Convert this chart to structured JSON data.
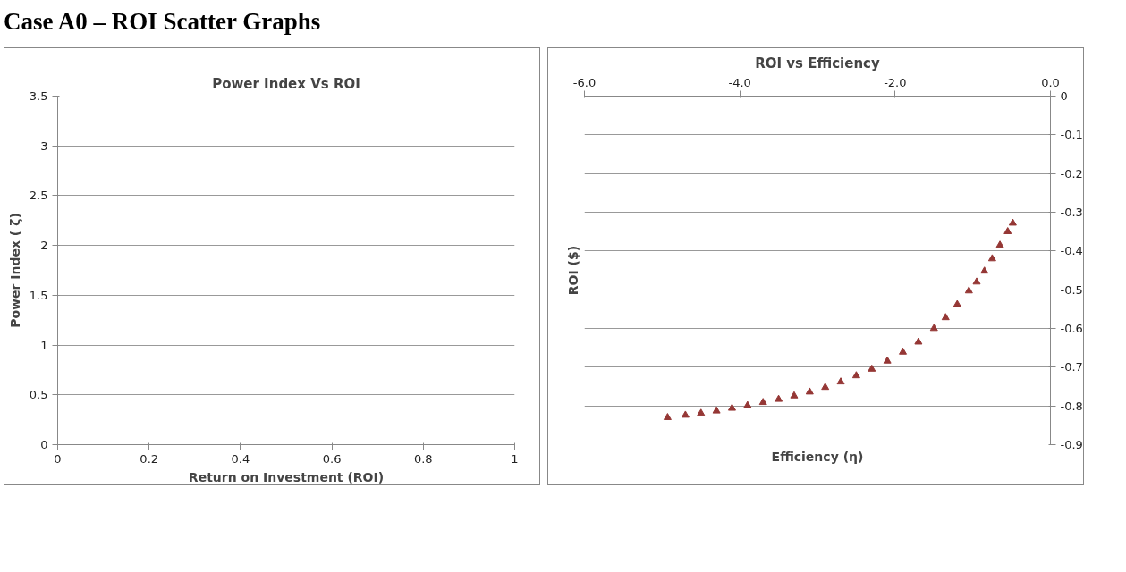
{
  "chart_data": [
    {
      "type": "scatter",
      "title": "Power Index Vs ROI",
      "xlabel": "Return on Investment (ROI)",
      "ylabel": "Power Index ( ζ)",
      "annotations": [
        "Case A0 – ROI Scatter Graphs"
      ],
      "xlim": [
        0,
        1
      ],
      "xticks": [
        0,
        0.2,
        0.4,
        0.6,
        0.8,
        1
      ],
      "ylim": [
        0,
        3.5
      ],
      "yticks": [
        0,
        0.5,
        1,
        1.5,
        2,
        2.5,
        3,
        3.5
      ],
      "grid": "y"
    },
    {
      "type": "scatter",
      "title": "ROI vs Efficiency",
      "xlabel": "Efficiency (η)",
      "ylabel": "ROI ($)",
      "marker": "triangle",
      "color": "#953735",
      "x": [
        -4.93,
        -4.7,
        -4.5,
        -4.3,
        -4.1,
        -3.9,
        -3.7,
        -3.5,
        -3.3,
        -3.1,
        -2.9,
        -2.7,
        -2.5,
        -2.3,
        -2.1,
        -1.9,
        -1.7,
        -1.5,
        -1.35,
        -1.2,
        -1.05,
        -0.95,
        -0.85,
        -0.75,
        -0.65,
        -0.55,
        -0.485
      ],
      "values": [
        -0.83,
        -0.824,
        -0.819,
        -0.813,
        -0.806,
        -0.799,
        -0.791,
        -0.783,
        -0.774,
        -0.764,
        -0.752,
        -0.738,
        -0.722,
        -0.705,
        -0.684,
        -0.661,
        -0.635,
        -0.6,
        -0.572,
        -0.538,
        -0.503,
        -0.48,
        -0.452,
        -0.42,
        -0.385,
        -0.35,
        -0.328
      ],
      "xlim": [
        -6,
        0
      ],
      "xticks": [
        {
          "value": -6,
          "label": "-6.0"
        },
        {
          "value": -4,
          "label": "-4.0"
        },
        {
          "value": -2,
          "label": "-2.0"
        },
        {
          "value": 0,
          "label": "0.0"
        }
      ],
      "ylim": [
        -0.9,
        0
      ],
      "yticks": [
        -0.9,
        -0.8,
        -0.7,
        -0.6,
        -0.5,
        -0.4,
        -0.3,
        -0.2,
        -0.1,
        0
      ],
      "grid": "y"
    }
  ]
}
